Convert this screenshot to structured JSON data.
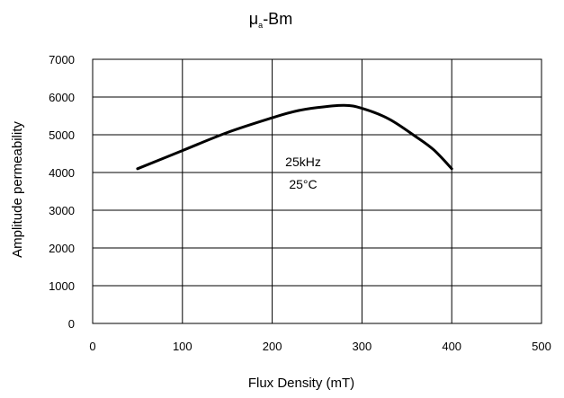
{
  "chart_data": {
    "type": "line",
    "title": "μₐ-Bm",
    "title_main": "μ",
    "title_subscript": "a",
    "title_rest": "-Bm",
    "xlabel": "Flux Density (mT)",
    "ylabel": "Amplitude permeability",
    "xlim": [
      0,
      500
    ],
    "ylim": [
      0,
      7000
    ],
    "x_ticks": [
      0,
      100,
      200,
      300,
      400,
      500
    ],
    "y_ticks": [
      0,
      1000,
      2000,
      3000,
      4000,
      5000,
      6000,
      7000
    ],
    "grid": true,
    "annotations": [
      "25kHz",
      "25°C"
    ],
    "series": [
      {
        "x": [
          50,
          100,
          150,
          200,
          225,
          250,
          280,
          300,
          330,
          360,
          380,
          400
        ],
        "y": [
          4100,
          4580,
          5060,
          5450,
          5620,
          5720,
          5780,
          5700,
          5420,
          4950,
          4600,
          4100
        ]
      }
    ]
  }
}
